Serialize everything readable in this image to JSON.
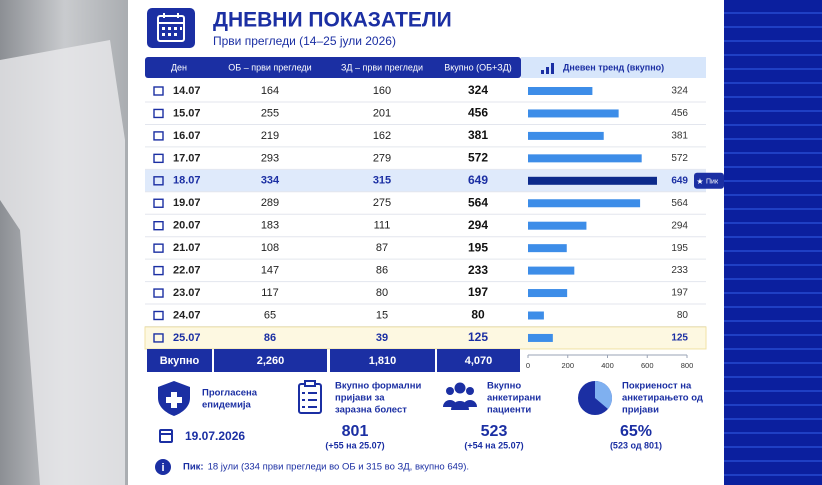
{
  "header": {
    "title": "ДНЕВНИ ПОКАЗАТЕЛИ",
    "subtitle": "Први прегледи (14–25 јули 2026)"
  },
  "table": {
    "columns": [
      "Ден",
      "ОБ – први прегледи",
      "ЗД – први прегледи",
      "Вкупно (ОБ+ЗД)",
      "Дневен тренд (вкупно)"
    ],
    "rows": [
      [
        "14.07",
        164,
        160,
        324
      ],
      [
        "15.07",
        255,
        201,
        456
      ],
      [
        "16.07",
        219,
        162,
        381
      ],
      [
        "17.07",
        293,
        279,
        572
      ],
      [
        "18.07",
        334,
        315,
        649
      ],
      [
        "19.07",
        289,
        275,
        564
      ],
      [
        "20.07",
        183,
        111,
        294
      ],
      [
        "21.07",
        108,
        87,
        195
      ],
      [
        "22.07",
        147,
        86,
        233
      ],
      [
        "23.07",
        117,
        80,
        197
      ],
      [
        "24.07",
        65,
        15,
        80
      ],
      [
        "25.07",
        86,
        39,
        125
      ]
    ],
    "totals": [
      "Вкупно",
      "2,260",
      "1,810",
      "4,070"
    ]
  },
  "chart_data": {
    "type": "bar",
    "orientation": "horizontal",
    "xlim": [
      0,
      800
    ],
    "xticks": [
      0,
      200,
      400,
      600,
      800
    ],
    "color": "#3d8de8",
    "peak_color": "#0c2a8c",
    "peak_label": "Пик"
  },
  "info": [
    {
      "lines": [
        "Прогласена",
        "епидемија"
      ],
      "date": "19.07.2026"
    },
    {
      "lines": [
        "Вкупно формални",
        "пријави за",
        "заразна болест"
      ],
      "value": "801",
      "note": "(+55 на 25.07)"
    },
    {
      "lines": [
        "Вкупно",
        "анкетирани",
        "пациенти"
      ],
      "value": "523",
      "note": "(+54 на 25.07)"
    },
    {
      "lines": [
        "Покриеност на",
        "анкетирањето од",
        "пријави"
      ],
      "value": "65%",
      "note": "(523 од 801)"
    }
  ],
  "footer": {
    "label": "Пик:",
    "text": "18 јули (334 први прегледи во ОБ и 315 во ЗД, вкупно 649)."
  }
}
